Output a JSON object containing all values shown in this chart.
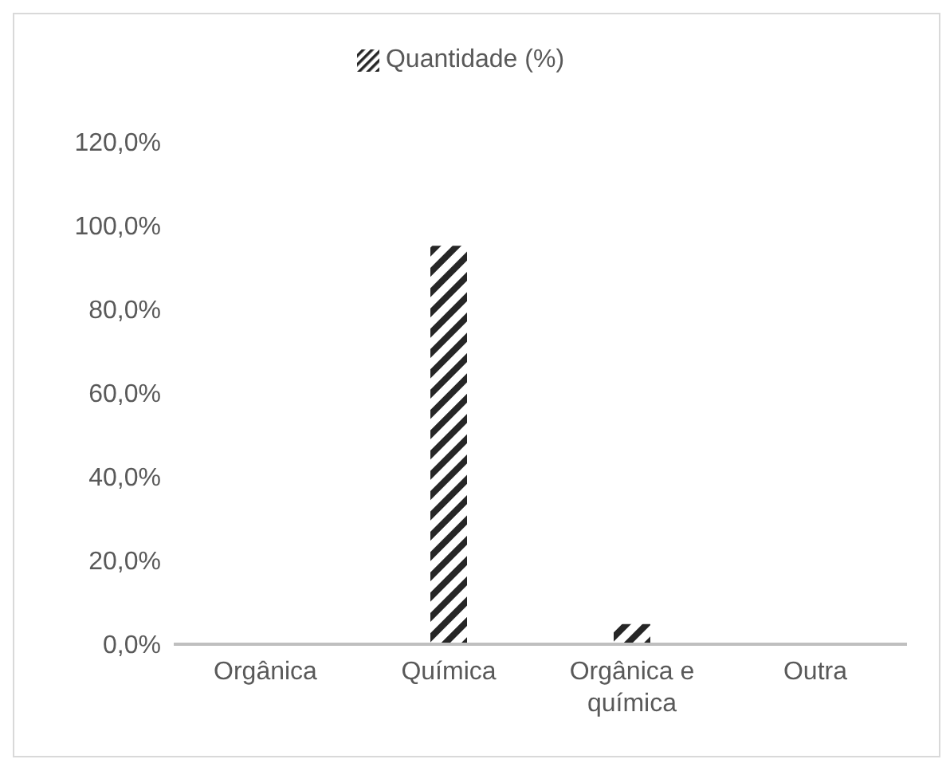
{
  "chart_data": {
    "type": "bar",
    "categories": [
      "Orgânica",
      "Química",
      "Orgânica e química",
      "Outra"
    ],
    "series": [
      {
        "name": "Quantidade (%)",
        "color": "#262626",
        "values": [
          0,
          95.2,
          4.8,
          0
        ]
      }
    ],
    "ylim": [
      0,
      120
    ],
    "yticks": [
      {
        "value": 0,
        "label": "0,0%"
      },
      {
        "value": 20,
        "label": "20,0%"
      },
      {
        "value": 40,
        "label": "40,0%"
      },
      {
        "value": 60,
        "label": "60,0%"
      },
      {
        "value": 80,
        "label": "80,0%"
      },
      {
        "value": 100,
        "label": "100,0%"
      },
      {
        "value": 120,
        "label": "120,0%"
      }
    ],
    "grid": false,
    "legend": "top"
  }
}
